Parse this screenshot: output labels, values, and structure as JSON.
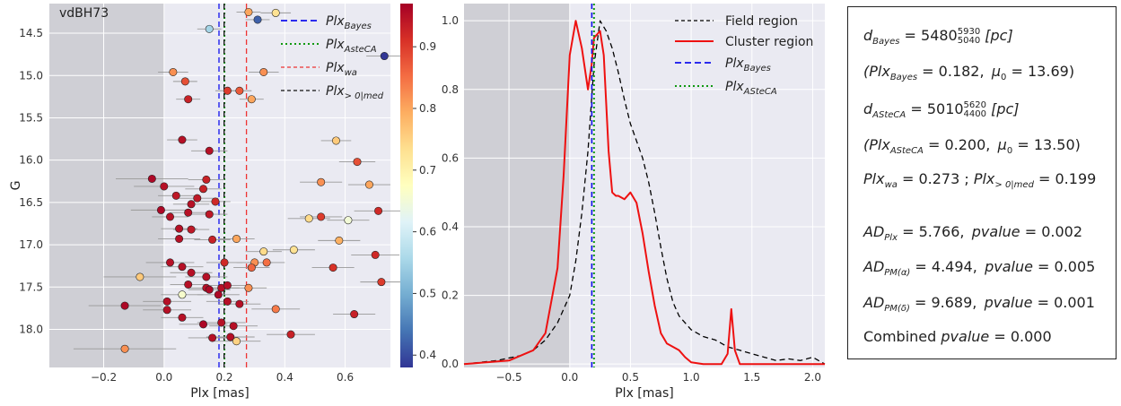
{
  "chart_data": [
    {
      "type": "scatter",
      "title": "vdBH73",
      "xlabel": "Plx [mas]",
      "ylabel": "G",
      "xlim": [
        -0.38,
        0.75
      ],
      "ylim": [
        18.45,
        14.15
      ],
      "y_inverted": true,
      "x_ticks": [
        "−0.2",
        "0.0",
        "0.2",
        "0.4",
        "0.6"
      ],
      "x_tick_values": [
        -0.2,
        0.0,
        0.2,
        0.4,
        0.6
      ],
      "y_ticks": [
        "14.5",
        "15.0",
        "15.5",
        "16.0",
        "16.5",
        "17.0",
        "17.5",
        "18.0"
      ],
      "y_tick_values": [
        14.5,
        15.0,
        15.5,
        16.0,
        16.5,
        17.0,
        17.5,
        18.0
      ],
      "shaded_region_x": [
        -0.38,
        0.0
      ],
      "colorbar": {
        "min": 0.38,
        "max": 0.97,
        "ticks": [
          "0.4",
          "0.5",
          "0.6",
          "0.7",
          "0.8",
          "0.9"
        ],
        "tick_values": [
          0.4,
          0.5,
          0.6,
          0.7,
          0.8,
          0.9
        ],
        "colormap": "RdYlBu_r"
      },
      "vlines": [
        {
          "name": "Plx_Bayes",
          "x": 0.182,
          "color": "#1010ee",
          "style": "dashed"
        },
        {
          "name": "Plx_ASteCA",
          "x": 0.2,
          "color": "#119911",
          "style": "dotted"
        },
        {
          "name": "Plx_wa",
          "x": 0.273,
          "color": "#ee3333",
          "style": "dashed"
        },
        {
          "name": "Plx_>0|med",
          "x": 0.199,
          "color": "#111111",
          "style": "dashed"
        }
      ],
      "points": [
        {
          "x": 0.28,
          "y": 14.25,
          "err": 0.04,
          "p": 0.8
        },
        {
          "x": 0.37,
          "y": 14.26,
          "err": 0.05,
          "p": 0.73
        },
        {
          "x": 0.31,
          "y": 14.34,
          "err": 0.04,
          "p": 0.42
        },
        {
          "x": 0.15,
          "y": 14.45,
          "err": 0.04,
          "p": 0.55
        },
        {
          "x": 0.73,
          "y": 14.77,
          "err": 0.06,
          "p": 0.38
        },
        {
          "x": 0.03,
          "y": 14.96,
          "err": 0.05,
          "p": 0.82
        },
        {
          "x": 0.33,
          "y": 14.96,
          "err": 0.05,
          "p": 0.82
        },
        {
          "x": 0.07,
          "y": 15.07,
          "err": 0.04,
          "p": 0.88
        },
        {
          "x": 0.21,
          "y": 15.18,
          "err": 0.04,
          "p": 0.9
        },
        {
          "x": 0.25,
          "y": 15.18,
          "err": 0.04,
          "p": 0.87
        },
        {
          "x": 0.08,
          "y": 15.28,
          "err": 0.04,
          "p": 0.93
        },
        {
          "x": 0.29,
          "y": 15.28,
          "err": 0.04,
          "p": 0.8
        },
        {
          "x": 0.06,
          "y": 15.76,
          "err": 0.05,
          "p": 0.95
        },
        {
          "x": 0.57,
          "y": 15.77,
          "err": 0.05,
          "p": 0.76
        },
        {
          "x": 0.15,
          "y": 15.89,
          "err": 0.06,
          "p": 0.95
        },
        {
          "x": 0.64,
          "y": 16.02,
          "err": 0.06,
          "p": 0.88
        },
        {
          "x": -0.04,
          "y": 16.22,
          "err": 0.12,
          "p": 0.96
        },
        {
          "x": 0.14,
          "y": 16.23,
          "err": 0.06,
          "p": 0.93
        },
        {
          "x": 0.52,
          "y": 16.26,
          "err": 0.07,
          "p": 0.82
        },
        {
          "x": 0.68,
          "y": 16.29,
          "err": 0.07,
          "p": 0.8
        },
        {
          "x": 0.0,
          "y": 16.31,
          "err": 0.1,
          "p": 0.95
        },
        {
          "x": 0.13,
          "y": 16.34,
          "err": 0.06,
          "p": 0.93
        },
        {
          "x": 0.04,
          "y": 16.42,
          "err": 0.06,
          "p": 0.94
        },
        {
          "x": 0.11,
          "y": 16.45,
          "err": 0.07,
          "p": 0.94
        },
        {
          "x": 0.17,
          "y": 16.49,
          "err": 0.05,
          "p": 0.92
        },
        {
          "x": 0.09,
          "y": 16.52,
          "err": 0.06,
          "p": 0.95
        },
        {
          "x": -0.01,
          "y": 16.59,
          "err": 0.1,
          "p": 0.96
        },
        {
          "x": 0.08,
          "y": 16.62,
          "err": 0.06,
          "p": 0.95
        },
        {
          "x": 0.71,
          "y": 16.6,
          "err": 0.08,
          "p": 0.92
        },
        {
          "x": 0.02,
          "y": 16.67,
          "err": 0.06,
          "p": 0.95
        },
        {
          "x": 0.15,
          "y": 16.64,
          "err": 0.06,
          "p": 0.94
        },
        {
          "x": 0.52,
          "y": 16.67,
          "err": 0.07,
          "p": 0.9
        },
        {
          "x": 0.48,
          "y": 16.69,
          "err": 0.07,
          "p": 0.74
        },
        {
          "x": 0.61,
          "y": 16.71,
          "err": 0.07,
          "p": 0.65
        },
        {
          "x": 0.05,
          "y": 16.81,
          "err": 0.06,
          "p": 0.95
        },
        {
          "x": 0.09,
          "y": 16.82,
          "err": 0.06,
          "p": 0.94
        },
        {
          "x": 0.05,
          "y": 16.93,
          "err": 0.07,
          "p": 0.95
        },
        {
          "x": 0.16,
          "y": 16.94,
          "err": 0.06,
          "p": 0.93
        },
        {
          "x": 0.24,
          "y": 16.93,
          "err": 0.06,
          "p": 0.8
        },
        {
          "x": 0.58,
          "y": 16.95,
          "err": 0.07,
          "p": 0.79
        },
        {
          "x": 0.43,
          "y": 17.06,
          "err": 0.07,
          "p": 0.73
        },
        {
          "x": 0.33,
          "y": 17.08,
          "err": 0.06,
          "p": 0.74
        },
        {
          "x": 0.7,
          "y": 17.12,
          "err": 0.08,
          "p": 0.92
        },
        {
          "x": 0.02,
          "y": 17.21,
          "err": 0.08,
          "p": 0.95
        },
        {
          "x": 0.2,
          "y": 17.21,
          "err": 0.06,
          "p": 0.92
        },
        {
          "x": 0.3,
          "y": 17.21,
          "err": 0.06,
          "p": 0.82
        },
        {
          "x": 0.34,
          "y": 17.21,
          "err": 0.06,
          "p": 0.85
        },
        {
          "x": 0.06,
          "y": 17.26,
          "err": 0.07,
          "p": 0.95
        },
        {
          "x": 0.29,
          "y": 17.27,
          "err": 0.06,
          "p": 0.86
        },
        {
          "x": 0.56,
          "y": 17.27,
          "err": 0.07,
          "p": 0.91
        },
        {
          "x": 0.09,
          "y": 17.33,
          "err": 0.07,
          "p": 0.95
        },
        {
          "x": 0.14,
          "y": 17.38,
          "err": 0.07,
          "p": 0.95
        },
        {
          "x": -0.08,
          "y": 17.38,
          "err": 0.12,
          "p": 0.76
        },
        {
          "x": 0.72,
          "y": 17.44,
          "err": 0.07,
          "p": 0.9
        },
        {
          "x": 0.08,
          "y": 17.47,
          "err": 0.06,
          "p": 0.95
        },
        {
          "x": 0.14,
          "y": 17.51,
          "err": 0.06,
          "p": 0.95
        },
        {
          "x": 0.19,
          "y": 17.51,
          "err": 0.06,
          "p": 0.95
        },
        {
          "x": 0.28,
          "y": 17.51,
          "err": 0.06,
          "p": 0.82
        },
        {
          "x": 0.15,
          "y": 17.53,
          "err": 0.07,
          "p": 0.96
        },
        {
          "x": 0.21,
          "y": 17.48,
          "err": 0.06,
          "p": 0.95
        },
        {
          "x": 0.06,
          "y": 17.59,
          "err": 0.07,
          "p": 0.66
        },
        {
          "x": 0.18,
          "y": 17.59,
          "err": 0.07,
          "p": 0.96
        },
        {
          "x": 0.01,
          "y": 17.67,
          "err": 0.08,
          "p": 0.95
        },
        {
          "x": 0.21,
          "y": 17.67,
          "err": 0.07,
          "p": 0.95
        },
        {
          "x": 0.25,
          "y": 17.7,
          "err": 0.07,
          "p": 0.95
        },
        {
          "x": -0.13,
          "y": 17.72,
          "err": 0.12,
          "p": 0.96
        },
        {
          "x": 0.01,
          "y": 17.77,
          "err": 0.08,
          "p": 0.95
        },
        {
          "x": 0.37,
          "y": 17.76,
          "err": 0.08,
          "p": 0.84
        },
        {
          "x": 0.63,
          "y": 17.82,
          "err": 0.07,
          "p": 0.93
        },
        {
          "x": 0.06,
          "y": 17.86,
          "err": 0.07,
          "p": 0.95
        },
        {
          "x": 0.13,
          "y": 17.94,
          "err": 0.08,
          "p": 0.96
        },
        {
          "x": 0.19,
          "y": 17.92,
          "err": 0.08,
          "p": 0.95
        },
        {
          "x": 0.23,
          "y": 17.96,
          "err": 0.08,
          "p": 0.95
        },
        {
          "x": 0.16,
          "y": 18.1,
          "err": 0.08,
          "p": 0.95
        },
        {
          "x": 0.22,
          "y": 18.09,
          "err": 0.08,
          "p": 0.95
        },
        {
          "x": 0.42,
          "y": 18.06,
          "err": 0.08,
          "p": 0.93
        },
        {
          "x": 0.24,
          "y": 18.14,
          "err": 0.08,
          "p": 0.75
        },
        {
          "x": -0.13,
          "y": 18.23,
          "err": 0.17,
          "p": 0.82
        }
      ]
    },
    {
      "type": "line",
      "xlabel": "Plx [mas]",
      "ylabel": "",
      "xlim": [
        -0.87,
        2.1
      ],
      "ylim": [
        -0.01,
        1.05
      ],
      "x_ticks": [
        "−0.5",
        "0.0",
        "0.5",
        "1.0",
        "1.5",
        "2.0"
      ],
      "x_tick_values": [
        -0.5,
        0.0,
        0.5,
        1.0,
        1.5,
        2.0
      ],
      "y_ticks": [
        "0.0",
        "0.2",
        "0.4",
        "0.6",
        "0.8",
        "1.0"
      ],
      "y_tick_values": [
        0.0,
        0.2,
        0.4,
        0.6,
        0.8,
        1.0
      ],
      "shaded_region_x": [
        -0.87,
        0.0
      ],
      "legend_position": "top-right",
      "vlines": [
        {
          "name": "Plx_Bayes",
          "x": 0.182,
          "color": "#1010ee",
          "style": "dashed"
        },
        {
          "name": "Plx_ASteCA",
          "x": 0.2,
          "color": "#119911",
          "style": "dotted"
        }
      ],
      "series": [
        {
          "name": "Field region",
          "color": "#000000",
          "style": "dashed",
          "x": [
            -0.87,
            -0.6,
            -0.4,
            -0.3,
            -0.2,
            -0.1,
            0.0,
            0.05,
            0.1,
            0.15,
            0.2,
            0.25,
            0.3,
            0.35,
            0.4,
            0.45,
            0.5,
            0.55,
            0.6,
            0.65,
            0.7,
            0.75,
            0.8,
            0.85,
            0.9,
            0.95,
            1.0,
            1.1,
            1.2,
            1.3,
            1.4,
            1.5,
            1.6,
            1.7,
            1.8,
            1.9,
            2.0,
            2.1
          ],
          "y": [
            0.0,
            0.01,
            0.025,
            0.04,
            0.07,
            0.12,
            0.2,
            0.3,
            0.44,
            0.62,
            0.87,
            1.0,
            0.97,
            0.92,
            0.85,
            0.77,
            0.7,
            0.65,
            0.6,
            0.53,
            0.44,
            0.34,
            0.25,
            0.18,
            0.14,
            0.12,
            0.1,
            0.08,
            0.07,
            0.05,
            0.04,
            0.03,
            0.02,
            0.01,
            0.015,
            0.01,
            0.02,
            0.0
          ]
        },
        {
          "name": "Cluster region",
          "color": "#ee1111",
          "style": "solid",
          "x": [
            -0.87,
            -0.5,
            -0.3,
            -0.2,
            -0.1,
            -0.05,
            0.0,
            0.05,
            0.1,
            0.15,
            0.18,
            0.2,
            0.25,
            0.28,
            0.32,
            0.35,
            0.38,
            0.4,
            0.45,
            0.5,
            0.55,
            0.6,
            0.65,
            0.7,
            0.75,
            0.8,
            0.85,
            0.9,
            0.95,
            1.0,
            1.1,
            1.2,
            1.25,
            1.3,
            1.33,
            1.36,
            1.4,
            1.5,
            1.7,
            1.9,
            2.1
          ],
          "y": [
            0.0,
            0.01,
            0.04,
            0.09,
            0.28,
            0.55,
            0.9,
            1.0,
            0.92,
            0.8,
            0.87,
            0.95,
            0.97,
            0.9,
            0.62,
            0.5,
            0.49,
            0.49,
            0.48,
            0.5,
            0.47,
            0.38,
            0.27,
            0.17,
            0.09,
            0.06,
            0.05,
            0.04,
            0.02,
            0.005,
            0.0,
            0.0,
            0.0,
            0.03,
            0.16,
            0.04,
            0.0,
            0.0,
            0.0,
            0.0,
            0.0
          ]
        }
      ]
    }
  ],
  "panel1": {
    "title": "vdBH73",
    "xlabel": "Plx [mas]",
    "ylabel": "G",
    "legend": [
      {
        "base": "Plx",
        "sub": "Bayes"
      },
      {
        "base": "Plx",
        "sub": "AsteCA"
      },
      {
        "base": "Plx",
        "sub": "wa"
      },
      {
        "base": "Plx",
        "sub": "> 0|med"
      }
    ]
  },
  "panel2": {
    "xlabel": "Plx [mas]",
    "legend": [
      {
        "label": "Field region"
      },
      {
        "label": "Cluster region"
      },
      {
        "base": "Plx",
        "sub": "Bayes"
      },
      {
        "base": "Plx",
        "sub": "ASteCA"
      }
    ]
  },
  "stats": {
    "d_bayes": {
      "label": "d",
      "sub": "Bayes",
      "value": "5480",
      "upper": "5930",
      "lower": "5040",
      "unit": "[pc]"
    },
    "plx_bayes": {
      "text": "(Plx",
      "sub": "Bayes",
      "plx": "0.182",
      "mu0": "13.69"
    },
    "d_asteca": {
      "label": "d",
      "sub": "ASteCA",
      "value": "5010",
      "upper": "5620",
      "lower": "4400",
      "unit": "[pc]"
    },
    "plx_asteca": {
      "text": "(Plx",
      "sub": "ASteCA",
      "plx": "0.200",
      "mu0": "13.50"
    },
    "plx_wa": {
      "sub": "wa",
      "value": "0.273",
      "sub2": "> 0|med",
      "value2": "0.199"
    },
    "ad_plx": {
      "sub": "Plx",
      "value": "5.766",
      "pvalue": "0.002"
    },
    "ad_pma": {
      "sub": "PM(α)",
      "value": "4.494",
      "pvalue": "0.005"
    },
    "ad_pmd": {
      "sub": "PM(δ)",
      "value": "9.689",
      "pvalue": "0.001"
    },
    "combined": {
      "label": "Combined",
      "pvalue": "0.000"
    }
  }
}
